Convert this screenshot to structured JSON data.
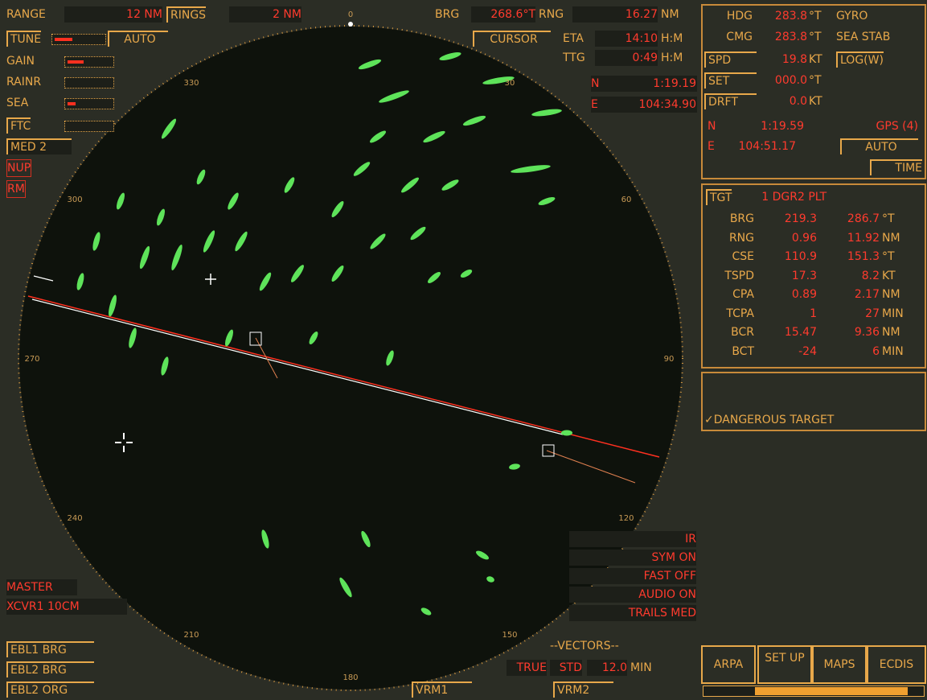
{
  "top_left": {
    "range_label": "RANGE",
    "range": "12 NM",
    "rings_label": "RINGS",
    "rings": "2 NM",
    "tune": "TUNE",
    "tune_mode": "AUTO",
    "gain": "GAIN",
    "rainr": "RAINR",
    "sea": "SEA",
    "ftc": "FTC",
    "pulse": "MED 2",
    "orientation": "NUP",
    "motion": "RM"
  },
  "cursor": {
    "brg_label": "BRG",
    "brg": "268.6°T",
    "rng_label": "RNG",
    "rng": "16.27",
    "rng_unit": "NM",
    "mode": "CURSOR",
    "eta_label": "ETA",
    "eta": "14:10",
    "eta_unit": "H:M",
    "ttg_label": "TTG",
    "ttg": "0:49",
    "ttg_unit": "H:M",
    "lat_label": "N",
    "lat": "1:19.19",
    "lon_label": "E",
    "lon": "104:34.90"
  },
  "own_ship": {
    "rows": [
      [
        "HDG",
        "283.8",
        "°T",
        "GYRO"
      ],
      [
        "CMG",
        "283.8",
        "°T",
        "SEA STAB"
      ],
      [
        "SPD",
        "19.8",
        "KT",
        "LOG(W)"
      ],
      [
        "SET",
        "000.0",
        "°T"
      ],
      [
        "DRFT",
        "0.0",
        "KT"
      ]
    ],
    "position": {
      "lat_label": "N",
      "lat": "1:19.59",
      "source": "GPS (4)",
      "lon_label": "E",
      "lon": "104:51.17",
      "mode": "AUTO",
      "time": "TIME"
    }
  },
  "target_table": {
    "headers": [
      "TGT",
      "1 DGR",
      "2 PLT"
    ],
    "rows": [
      [
        "BRG",
        "219.3",
        "286.7",
        "°T"
      ],
      [
        "RNG",
        "0.96",
        "11.92",
        "NM"
      ],
      [
        "CSE",
        "110.9",
        "151.3",
        "°T"
      ],
      [
        "TSPD",
        "17.3",
        "8.2",
        "KT"
      ],
      [
        "CPA",
        "0.89",
        "2.17",
        "NM"
      ],
      [
        "TCPA",
        "1",
        "27",
        "MIN"
      ],
      [
        "BCR",
        "15.47",
        "9.36",
        "NM"
      ],
      [
        "BCT",
        "-24",
        "6",
        "MIN"
      ]
    ]
  },
  "alarm": "✓DANGEROUS TARGET",
  "display_settings": [
    "IR",
    "SYM ON",
    "FAST OFF",
    "AUDIO ON",
    "TRAILS MED"
  ],
  "vectors": {
    "title": "--VECTORS--",
    "mode": "TRUE",
    "reference": "STD",
    "time": "12.0",
    "unit": "MIN"
  },
  "transceiver": {
    "master": "MASTER",
    "xcvr": "XCVR1 10CM"
  },
  "ebl_buttons": [
    "EBL1 BRG",
    "EBL2 BRG",
    "EBL2 ORG"
  ],
  "vrm_buttons": [
    "VRM1",
    "VRM2"
  ],
  "menu_buttons": [
    "ARPA",
    "SET UP",
    "MAPS",
    "ECDIS"
  ],
  "bearing_scale": [
    0,
    30,
    60,
    90,
    120,
    150,
    180,
    210,
    240,
    270,
    300,
    330
  ]
}
